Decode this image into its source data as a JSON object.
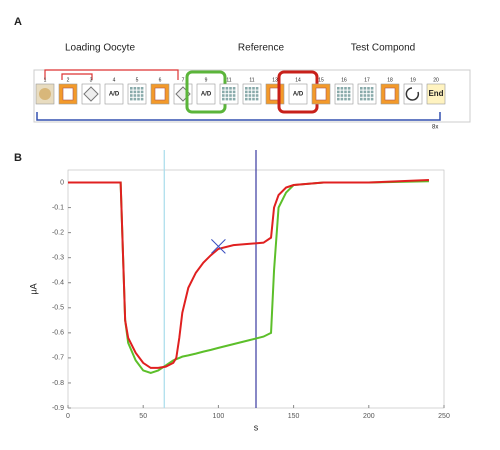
{
  "panel_a": {
    "label": "A",
    "sections": [
      "Loading Oocyte",
      "Reference",
      "Test Compond"
    ],
    "icons": [
      {
        "number": "1"
      },
      {
        "number": "2"
      },
      {
        "number": "3"
      },
      {
        "number": "4",
        "label": "A/D"
      },
      {
        "number": "5"
      },
      {
        "number": "6"
      },
      {
        "number": "7"
      },
      {
        "number": "9",
        "label": "A/D"
      },
      {
        "number": "11"
      },
      {
        "number": "11"
      },
      {
        "number": "13"
      },
      {
        "number": "14",
        "label": "A/D"
      },
      {
        "number": "15"
      },
      {
        "number": "16"
      },
      {
        "number": "17"
      },
      {
        "number": "18"
      },
      {
        "number": "19"
      },
      {
        "number": "20",
        "label": "End"
      }
    ],
    "repeat_label": "8x"
  },
  "chart_data": {
    "type": "line",
    "panel_label": "B",
    "xlabel": "s",
    "ylabel": "µA",
    "x": [
      0,
      35,
      38,
      40,
      45,
      50,
      55,
      60,
      65,
      70,
      72,
      74,
      76,
      80,
      85,
      90,
      95,
      100,
      110,
      120,
      130,
      135,
      137,
      140,
      145,
      150,
      170,
      200,
      240
    ],
    "series": [
      {
        "name": "Reference",
        "color": "#5cbf2a",
        "values": [
          0,
          0,
          -0.55,
          -0.64,
          -0.71,
          -0.75,
          -0.76,
          -0.75,
          -0.73,
          -0.71,
          -0.705,
          -0.7,
          -0.695,
          -0.69,
          -0.683,
          -0.675,
          -0.668,
          -0.66,
          -0.645,
          -0.63,
          -0.615,
          -0.6,
          -0.35,
          -0.1,
          -0.04,
          -0.01,
          0,
          0,
          0.005
        ]
      },
      {
        "name": "Test Compond",
        "color": "#e02020",
        "values": [
          0,
          0,
          -0.55,
          -0.62,
          -0.68,
          -0.72,
          -0.74,
          -0.74,
          -0.735,
          -0.72,
          -0.7,
          -0.62,
          -0.52,
          -0.42,
          -0.36,
          -0.32,
          -0.29,
          -0.265,
          -0.25,
          -0.245,
          -0.24,
          -0.22,
          -0.1,
          -0.05,
          -0.02,
          -0.01,
          0,
          0,
          0.01
        ]
      }
    ],
    "vlines": [
      {
        "x": 64,
        "color": "#a8dcec"
      },
      {
        "x": 125,
        "color": "#3a3aa0"
      }
    ],
    "marker": {
      "x": 100,
      "y": -0.255,
      "color": "#3a4fbf"
    },
    "xlim": [
      0,
      250
    ],
    "xticks": [
      0,
      50,
      100,
      150,
      200,
      250
    ],
    "ylim": [
      -0.9,
      0.05
    ],
    "yticks": [
      0,
      -0.1,
      -0.2,
      -0.3,
      -0.4,
      -0.5,
      -0.6,
      -0.7,
      -0.8,
      -0.9
    ]
  }
}
